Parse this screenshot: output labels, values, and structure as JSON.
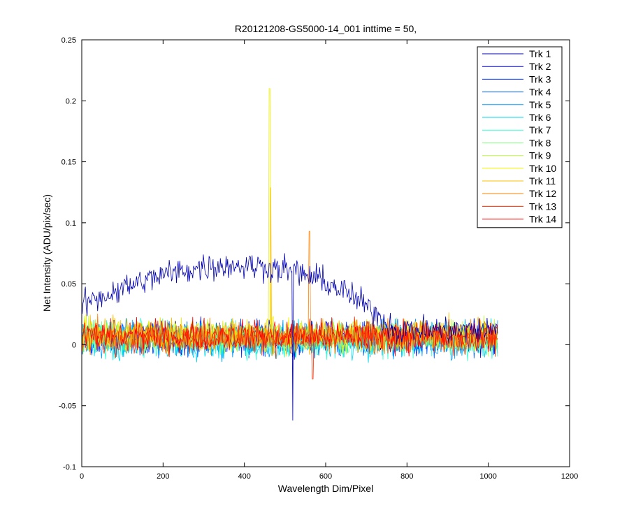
{
  "chart_data": {
    "type": "line",
    "title": "R20121208-GS5000-14_001 inttime = 50,",
    "xlabel": "Wavelength Dim/Pixel",
    "ylabel": "Net Intensity (ADU/pix/sec)",
    "xlim": [
      0,
      1200
    ],
    "ylim": [
      -0.1,
      0.25
    ],
    "x_ticks": [
      0,
      200,
      400,
      600,
      800,
      1000,
      1200
    ],
    "x_tick_labels": [
      "0",
      "200",
      "400",
      "600",
      "800",
      "1000",
      "1200"
    ],
    "y_ticks": [
      -0.1,
      -0.05,
      0,
      0.05,
      0.1,
      0.15,
      0.2,
      0.25
    ],
    "y_tick_labels": [
      "-0.1",
      "-0.05",
      "0",
      "0.05",
      "0.1",
      "0.15",
      "0.2",
      "0.25"
    ],
    "grid": false,
    "legend_position": "top-right",
    "x_range": [
      1,
      1024
    ],
    "series": [
      {
        "name": "Trk 1",
        "color": "#0000b0",
        "baseline": "broad hump",
        "peak_near_x": 370,
        "peak_value": 0.065,
        "start_value": 0.033,
        "end_value": 0.012,
        "noise": 0.007,
        "spikes": [
          {
            "x": 519,
            "value": -0.062
          }
        ]
      },
      {
        "name": "Trk 2",
        "color": "#0000d8",
        "baseline": "flat",
        "level": 0.006,
        "noise": 0.008,
        "spikes": []
      },
      {
        "name": "Trk 3",
        "color": "#0030ff",
        "baseline": "flat",
        "level": 0.005,
        "noise": 0.008,
        "spikes": []
      },
      {
        "name": "Trk 4",
        "color": "#0060ff",
        "baseline": "flat",
        "level": 0.005,
        "noise": 0.008,
        "spikes": []
      },
      {
        "name": "Trk 5",
        "color": "#00a0ff",
        "baseline": "flat",
        "level": 0.004,
        "noise": 0.009,
        "spikes": []
      },
      {
        "name": "Trk 6",
        "color": "#00d8f0",
        "baseline": "flat",
        "level": 0.003,
        "noise": 0.009,
        "spikes": []
      },
      {
        "name": "Trk 7",
        "color": "#30ffd0",
        "baseline": "flat",
        "level": 0.004,
        "noise": 0.009,
        "spikes": []
      },
      {
        "name": "Trk 8",
        "color": "#80ff80",
        "baseline": "flat",
        "level": 0.006,
        "noise": 0.008,
        "spikes": []
      },
      {
        "name": "Trk 9",
        "color": "#c0ff40",
        "baseline": "flat",
        "level": 0.007,
        "noise": 0.008,
        "spikes": []
      },
      {
        "name": "Trk 10",
        "color": "#f0f000",
        "baseline": "flat",
        "level": 0.008,
        "noise": 0.008,
        "spikes": [
          {
            "x": 462,
            "value": 0.21
          }
        ]
      },
      {
        "name": "Trk 11",
        "color": "#ffc000",
        "baseline": "flat",
        "level": 0.008,
        "noise": 0.008,
        "spikes": [
          {
            "x": 465,
            "value": 0.129
          }
        ]
      },
      {
        "name": "Trk 12",
        "color": "#ff8000",
        "baseline": "flat",
        "level": 0.007,
        "noise": 0.008,
        "spikes": [
          {
            "x": 560,
            "value": 0.093
          }
        ]
      },
      {
        "name": "Trk 13",
        "color": "#ff3000",
        "baseline": "flat",
        "level": 0.006,
        "noise": 0.008,
        "spikes": [
          {
            "x": 568,
            "value": -0.028
          }
        ]
      },
      {
        "name": "Trk 14",
        "color": "#ff0000",
        "baseline": "flat",
        "level": 0.007,
        "noise": 0.008,
        "spikes": []
      }
    ]
  }
}
